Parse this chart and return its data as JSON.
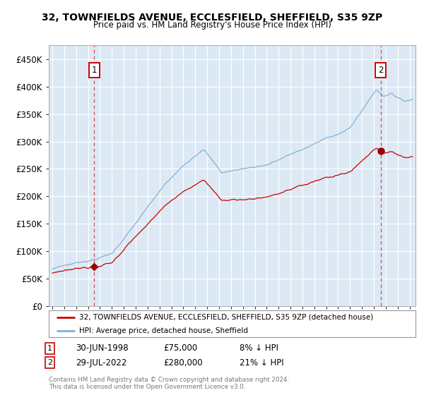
{
  "title": "32, TOWNFIELDS AVENUE, ECCLESFIELD, SHEFFIELD, S35 9ZP",
  "subtitle": "Price paid vs. HM Land Registry's House Price Index (HPI)",
  "plot_bg_color": "#dce9f5",
  "hpi_line_color": "#7bafd4",
  "price_line_color": "#cc0000",
  "marker_color": "#990000",
  "vline_color_1": "#cc3333",
  "vline_color_2": "#cc3333",
  "box1_edge": "#cc0000",
  "box2_edge": "#cc0000",
  "ylim": [
    0,
    475000
  ],
  "xlim_start": 1994.7,
  "xlim_end": 2025.5,
  "sale_1_year": 1998.5,
  "sale_1_price": 75000,
  "sale_2_year": 2022.58,
  "sale_2_price": 280000,
  "legend_items": [
    {
      "label": "32, TOWNFIELDS AVENUE, ECCLESFIELD, SHEFFIELD, S35 9ZP (detached house)",
      "color": "#cc0000"
    },
    {
      "label": "HPI: Average price, detached house, Sheffield",
      "color": "#7bafd4"
    }
  ],
  "table_rows": [
    {
      "num": "1",
      "date": "30-JUN-1998",
      "price": "£75,000",
      "hpi": "8% ↓ HPI"
    },
    {
      "num": "2",
      "date": "29-JUL-2022",
      "price": "£280,000",
      "hpi": "21% ↓ HPI"
    }
  ],
  "footnote": "Contains HM Land Registry data © Crown copyright and database right 2024.\nThis data is licensed under the Open Government Licence v3.0.",
  "yticks": [
    0,
    50000,
    100000,
    150000,
    200000,
    250000,
    300000,
    350000,
    400000,
    450000
  ],
  "ytick_labels": [
    "£0",
    "£50K",
    "£100K",
    "£150K",
    "£200K",
    "£250K",
    "£300K",
    "£350K",
    "£400K",
    "£450K"
  ]
}
